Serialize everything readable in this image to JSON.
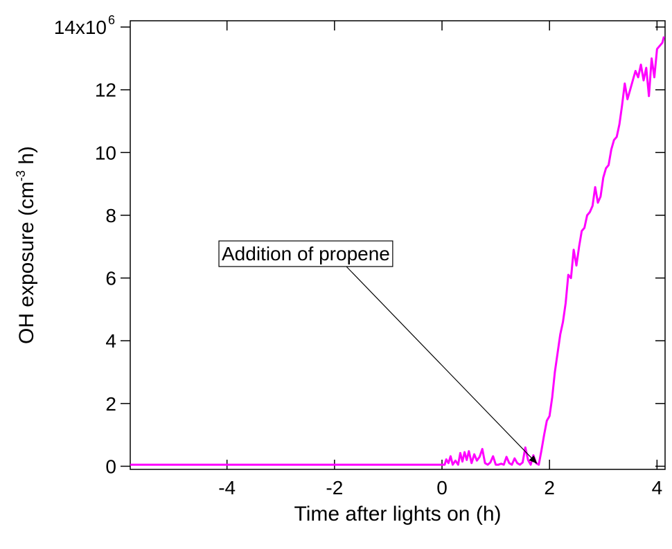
{
  "chart_data": {
    "type": "line",
    "xlabel": "Time after lights on (h)",
    "ylabel": {
      "main": "OH exposure (cm",
      "sup": "-3",
      "tail": " h)"
    },
    "x_ticks": [
      -4,
      -2,
      0,
      2,
      4
    ],
    "x_tick_labels": [
      "-4",
      "-2",
      "0",
      "2",
      "4"
    ],
    "y_ticks": [
      0,
      2,
      4,
      6,
      8,
      10,
      12,
      14
    ],
    "y_tick_labels": [
      "0",
      "2",
      "4",
      "6",
      "8",
      "10",
      "12",
      "14x10"
    ],
    "y_multiplier_exponent": "6",
    "xlim": [
      -5.8,
      4.15
    ],
    "ylim": [
      -0.1,
      14.2
    ],
    "grid": false,
    "series": [
      {
        "color": "#ff00ff",
        "points": [
          [
            -5.8,
            0.05
          ],
          [
            0.0,
            0.05
          ],
          [
            0.05,
            0.05
          ],
          [
            0.08,
            0.22
          ],
          [
            0.12,
            0.1
          ],
          [
            0.16,
            0.32
          ],
          [
            0.2,
            0.05
          ],
          [
            0.25,
            0.18
          ],
          [
            0.3,
            0.05
          ],
          [
            0.34,
            0.42
          ],
          [
            0.38,
            0.15
          ],
          [
            0.42,
            0.45
          ],
          [
            0.46,
            0.2
          ],
          [
            0.5,
            0.48
          ],
          [
            0.55,
            0.1
          ],
          [
            0.6,
            0.38
          ],
          [
            0.65,
            0.18
          ],
          [
            0.7,
            0.3
          ],
          [
            0.75,
            0.55
          ],
          [
            0.8,
            0.1
          ],
          [
            0.85,
            0.05
          ],
          [
            0.9,
            0.12
          ],
          [
            0.95,
            0.32
          ],
          [
            1.0,
            0.05
          ],
          [
            1.05,
            0.05
          ],
          [
            1.1,
            0.08
          ],
          [
            1.15,
            0.05
          ],
          [
            1.2,
            0.3
          ],
          [
            1.25,
            0.1
          ],
          [
            1.3,
            0.05
          ],
          [
            1.35,
            0.25
          ],
          [
            1.4,
            0.1
          ],
          [
            1.45,
            0.05
          ],
          [
            1.5,
            0.12
          ],
          [
            1.55,
            0.6
          ],
          [
            1.6,
            0.2
          ],
          [
            1.65,
            0.05
          ],
          [
            1.7,
            0.35
          ],
          [
            1.75,
            0.1
          ],
          [
            1.8,
            0.05
          ],
          [
            1.85,
            0.5
          ],
          [
            1.9,
            1.0
          ],
          [
            1.95,
            1.45
          ],
          [
            2.0,
            1.6
          ],
          [
            2.05,
            2.2
          ],
          [
            2.1,
            3.0
          ],
          [
            2.15,
            3.6
          ],
          [
            2.2,
            4.2
          ],
          [
            2.25,
            4.6
          ],
          [
            2.3,
            5.2
          ],
          [
            2.35,
            6.1
          ],
          [
            2.4,
            6.0
          ],
          [
            2.45,
            6.9
          ],
          [
            2.5,
            6.4
          ],
          [
            2.55,
            7.0
          ],
          [
            2.6,
            7.5
          ],
          [
            2.65,
            7.6
          ],
          [
            2.7,
            8.0
          ],
          [
            2.75,
            8.1
          ],
          [
            2.8,
            8.3
          ],
          [
            2.85,
            8.9
          ],
          [
            2.9,
            8.4
          ],
          [
            2.95,
            8.6
          ],
          [
            3.0,
            9.2
          ],
          [
            3.05,
            9.5
          ],
          [
            3.1,
            9.6
          ],
          [
            3.15,
            10.1
          ],
          [
            3.2,
            10.4
          ],
          [
            3.25,
            10.5
          ],
          [
            3.3,
            10.9
          ],
          [
            3.35,
            11.5
          ],
          [
            3.4,
            12.2
          ],
          [
            3.45,
            11.7
          ],
          [
            3.5,
            12.0
          ],
          [
            3.55,
            12.3
          ],
          [
            3.6,
            12.6
          ],
          [
            3.65,
            12.4
          ],
          [
            3.7,
            12.8
          ],
          [
            3.75,
            12.3
          ],
          [
            3.8,
            12.7
          ],
          [
            3.85,
            11.8
          ],
          [
            3.9,
            13.0
          ],
          [
            3.95,
            12.4
          ],
          [
            4.0,
            13.3
          ],
          [
            4.05,
            13.4
          ],
          [
            4.1,
            13.5
          ],
          [
            4.13,
            13.7
          ]
        ]
      }
    ],
    "annotation": {
      "text": "Addition of propene",
      "target": [
        1.8,
        0.05
      ]
    }
  }
}
